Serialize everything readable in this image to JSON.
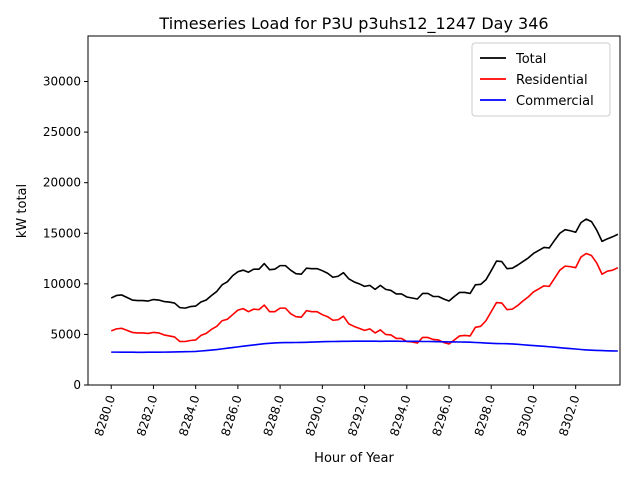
{
  "chart_data": {
    "type": "line",
    "title": "Timeseries Load for P3U p3uhs12_1247  Day 346",
    "xlabel": "Hour of Year",
    "ylabel": "kW total",
    "xlim": [
      8278.9,
      8304.1
    ],
    "ylim": [
      0,
      34500
    ],
    "xticks": [
      8280,
      8282,
      8284,
      8286,
      8288,
      8290,
      8292,
      8294,
      8296,
      8298,
      8300,
      8302
    ],
    "xtick_labels": [
      "8280.0",
      "8282.0",
      "8284.0",
      "8286.0",
      "8288.0",
      "8290.0",
      "8292.0",
      "8294.0",
      "8296.0",
      "8298.0",
      "8300.0",
      "8302.0"
    ],
    "yticks": [
      0,
      5000,
      10000,
      15000,
      20000,
      25000,
      30000
    ],
    "ytick_labels": [
      "0",
      "5000",
      "10000",
      "15000",
      "20000",
      "25000",
      "30000"
    ],
    "grid": false,
    "legend_position": "top-right",
    "x_start": 8280,
    "x_step": 0.25,
    "series": [
      {
        "name": "Total",
        "color": "#000000",
        "values": [
          8600,
          8850,
          8900,
          8650,
          8400,
          8350,
          8350,
          8300,
          8450,
          8400,
          8250,
          8200,
          8100,
          7650,
          7600,
          7750,
          7800,
          8200,
          8400,
          8850,
          9250,
          9900,
          10200,
          10800,
          11200,
          11350,
          11150,
          11450,
          11450,
          12000,
          11400,
          11450,
          11800,
          11800,
          11350,
          11000,
          10950,
          11550,
          11500,
          11500,
          11300,
          11050,
          10650,
          10750,
          11100,
          10500,
          10200,
          10000,
          9750,
          9850,
          9450,
          9850,
          9450,
          9350,
          9000,
          9000,
          8700,
          8600,
          8500,
          9050,
          9050,
          8750,
          8750,
          8500,
          8300,
          8750,
          9150,
          9150,
          9050,
          9900,
          9950,
          10400,
          11300,
          12250,
          12200,
          11500,
          11550,
          11850,
          12200,
          12550,
          13000,
          13300,
          13600,
          13550,
          14300,
          15000,
          15350,
          15250,
          15100,
          16050,
          16400,
          16150,
          15300,
          14200,
          14450,
          14650,
          14900
        ]
      },
      {
        "name": "Residential",
        "color": "#ff0000",
        "values": [
          5350,
          5550,
          5600,
          5400,
          5200,
          5150,
          5150,
          5100,
          5200,
          5150,
          4950,
          4850,
          4750,
          4300,
          4300,
          4400,
          4450,
          4900,
          5100,
          5500,
          5800,
          6350,
          6500,
          6950,
          7400,
          7550,
          7250,
          7500,
          7450,
          7900,
          7250,
          7250,
          7600,
          7600,
          7050,
          6750,
          6700,
          7350,
          7250,
          7250,
          6950,
          6750,
          6400,
          6450,
          6800,
          6050,
          5800,
          5600,
          5400,
          5550,
          5150,
          5450,
          5000,
          4950,
          4600,
          4600,
          4300,
          4250,
          4150,
          4700,
          4700,
          4500,
          4450,
          4200,
          4050,
          4450,
          4850,
          4900,
          4850,
          5700,
          5800,
          6350,
          7250,
          8150,
          8100,
          7450,
          7500,
          7850,
          8300,
          8700,
          9200,
          9500,
          9800,
          9750,
          10550,
          11350,
          11750,
          11700,
          11600,
          12650,
          13000,
          12800,
          12050,
          10950,
          11250,
          11350,
          11600
        ]
      },
      {
        "name": "Commercial",
        "color": "#0000ff",
        "values": [
          3250,
          3250,
          3240,
          3240,
          3240,
          3230,
          3230,
          3240,
          3240,
          3240,
          3250,
          3260,
          3270,
          3280,
          3290,
          3300,
          3320,
          3360,
          3400,
          3450,
          3500,
          3570,
          3640,
          3700,
          3770,
          3840,
          3900,
          3960,
          4020,
          4080,
          4120,
          4160,
          4180,
          4190,
          4190,
          4200,
          4210,
          4220,
          4240,
          4260,
          4280,
          4290,
          4300,
          4310,
          4320,
          4320,
          4330,
          4330,
          4330,
          4330,
          4330,
          4320,
          4330,
          4330,
          4330,
          4320,
          4320,
          4320,
          4320,
          4300,
          4300,
          4290,
          4280,
          4270,
          4260,
          4260,
          4250,
          4240,
          4230,
          4200,
          4180,
          4150,
          4120,
          4100,
          4090,
          4080,
          4060,
          4020,
          3980,
          3940,
          3900,
          3860,
          3820,
          3780,
          3740,
          3690,
          3640,
          3600,
          3560,
          3510,
          3470,
          3440,
          3420,
          3400,
          3380,
          3370,
          3360
        ]
      }
    ]
  }
}
